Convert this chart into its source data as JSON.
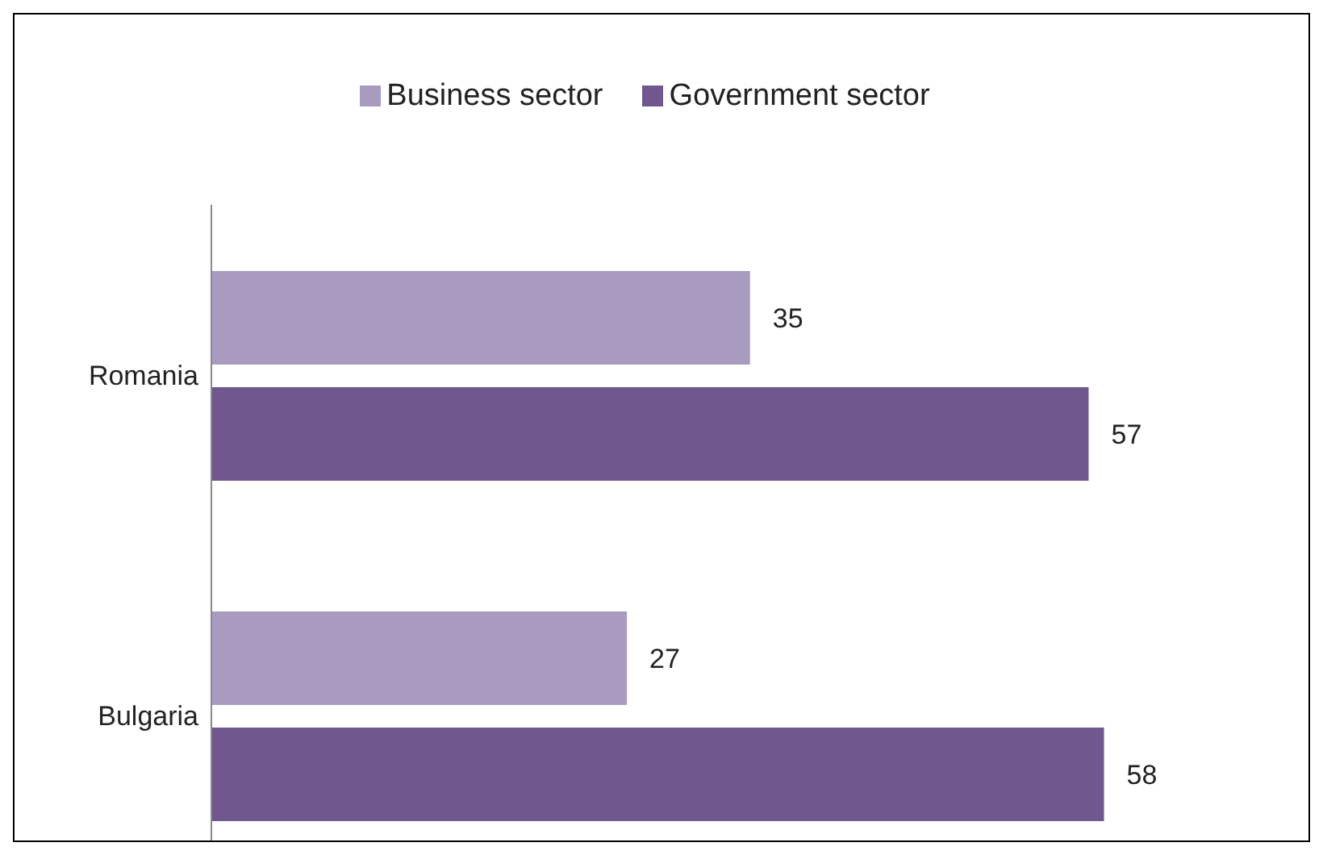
{
  "chart_data": {
    "type": "bar",
    "orientation": "horizontal",
    "categories": [
      "Romania",
      "Bulgaria"
    ],
    "series": [
      {
        "name": "Business sector",
        "color": "#a99bbf",
        "values": [
          35,
          27
        ]
      },
      {
        "name": "Government sector",
        "color": "#70588e",
        "values": [
          57,
          58
        ]
      }
    ],
    "data_labels": true,
    "legend": "top",
    "grid": false,
    "tick_labels": "y"
  }
}
